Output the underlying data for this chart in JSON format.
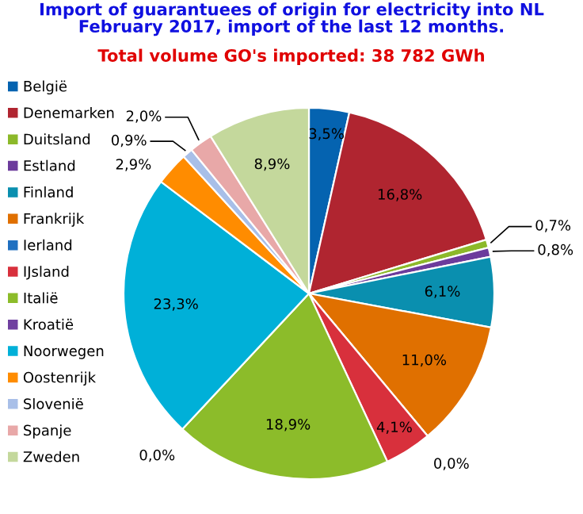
{
  "chart_data": {
    "type": "pie",
    "title": "Import of guarantuees of origin for electricity into NL\nFebruary 2017, import of the last 12 months.",
    "subtitle": "Total volume GO's imported: 38 782 GWh",
    "categories": [
      "België",
      "Denemarken",
      "Duitsland",
      "Estland",
      "Finland",
      "Frankrijk",
      "Ierland",
      "IJsland",
      "Italië",
      "Kroatië",
      "Noorwegen",
      "Oostenrijk",
      "Slovenië",
      "Spanje",
      "Zweden"
    ],
    "values": [
      3.5,
      16.8,
      0.7,
      0.8,
      6.1,
      11.0,
      0.0,
      4.1,
      18.9,
      0.0,
      23.3,
      2.9,
      0.9,
      2.0,
      8.9
    ],
    "value_labels": [
      "3,5%",
      "16,8%",
      "0,7%",
      "0,8%",
      "6,1%",
      "11,0%",
      "0,0%",
      "4,1%",
      "18,9%",
      "0,0%",
      "23,3%",
      "2,9%",
      "0,9%",
      "2,0%",
      "8,9%"
    ],
    "colors": [
      "#0563b0",
      "#b02530",
      "#8cb92a",
      "#6c3b9c",
      "#0a8faf",
      "#e07000",
      "#2070c0",
      "#d8303c",
      "#8cbc2a",
      "#7040a0",
      "#00b0d8",
      "#ff8c00",
      "#a8bfe8",
      "#e8a8a8",
      "#c4d89c"
    ],
    "legend": "left"
  }
}
